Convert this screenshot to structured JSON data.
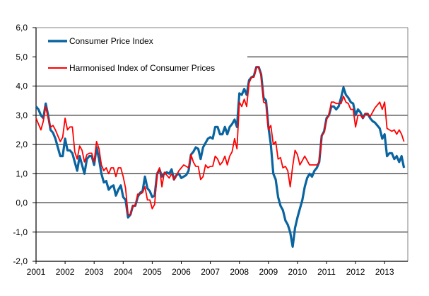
{
  "chart_data": {
    "type": "line",
    "title": "",
    "xlabel": "",
    "ylabel": "",
    "x_start": "2001-01",
    "x_frequency": "monthly",
    "x_tick_labels": [
      "2001",
      "2002",
      "2003",
      "2004",
      "2005",
      "2006",
      "2007",
      "2008",
      "2009",
      "2010",
      "2011",
      "2012",
      "2013"
    ],
    "y_tick_labels": [
      "6,0",
      "5,0",
      "4,0",
      "3,0",
      "2,0",
      "1,0",
      "0,0",
      "-1,0",
      "-2,0"
    ],
    "ylim": [
      -2,
      6
    ],
    "grid": true,
    "legend_placement": "top-left",
    "series": [
      {
        "name": "Consumer Price Index",
        "color": "#0a64a0",
        "values": [
          3.3,
          3.2,
          3.0,
          2.9,
          3.4,
          3.0,
          2.5,
          2.4,
          2.2,
          1.9,
          1.6,
          1.6,
          2.2,
          1.8,
          1.8,
          1.7,
          1.4,
          1.1,
          1.6,
          1.3,
          1.0,
          1.5,
          1.6,
          1.6,
          1.3,
          1.9,
          1.5,
          1.0,
          0.7,
          0.75,
          0.45,
          0.55,
          0.6,
          0.25,
          0.45,
          0.6,
          0.2,
          0.1,
          -0.5,
          -0.4,
          -0.1,
          -0.1,
          0.2,
          0.35,
          0.4,
          0.9,
          0.5,
          0.4,
          0.2,
          0.25,
          1.0,
          1.15,
          0.9,
          1.0,
          1.05,
          1.0,
          1.15,
          0.8,
          0.95,
          1.0,
          0.85,
          0.9,
          0.95,
          1.1,
          1.65,
          1.75,
          1.9,
          1.85,
          1.5,
          1.9,
          2.05,
          2.2,
          2.25,
          2.2,
          2.6,
          2.6,
          2.35,
          2.35,
          2.6,
          2.35,
          2.6,
          2.7,
          2.85,
          2.6,
          3.75,
          3.7,
          3.9,
          3.7,
          4.2,
          4.3,
          4.35,
          4.65,
          4.65,
          4.4,
          3.6,
          3.5,
          2.6,
          2.0,
          1.0,
          0.8,
          0.2,
          -0.1,
          -0.25,
          -0.6,
          -0.75,
          -1.0,
          -1.5,
          -0.85,
          -0.5,
          -0.2,
          0.1,
          0.55,
          0.85,
          1.0,
          0.9,
          1.1,
          1.2,
          1.4,
          2.3,
          2.45,
          2.9,
          3.0,
          3.3,
          3.3,
          3.2,
          3.3,
          3.6,
          3.95,
          3.7,
          3.6,
          3.45,
          3.4,
          3.0,
          3.2,
          3.1,
          2.9,
          3.05,
          3.05,
          2.9,
          2.8,
          2.75,
          2.65,
          2.55,
          2.2,
          2.35,
          1.6,
          1.7,
          1.7,
          1.5,
          1.6,
          1.4,
          1.6,
          1.2
        ]
      },
      {
        "name": "Harmonised Index of Consumer Prices",
        "color": "#ff0000",
        "values": [
          2.9,
          2.7,
          2.5,
          2.8,
          3.3,
          2.9,
          2.6,
          2.65,
          2.5,
          2.3,
          2.1,
          2.25,
          2.9,
          2.5,
          2.6,
          2.6,
          1.75,
          1.5,
          1.95,
          1.8,
          1.4,
          1.65,
          1.7,
          1.7,
          1.4,
          2.1,
          1.85,
          1.3,
          1.1,
          1.2,
          1.0,
          1.2,
          1.2,
          0.9,
          1.2,
          1.2,
          0.9,
          0.5,
          -0.4,
          -0.4,
          -0.1,
          -0.1,
          0.3,
          0.3,
          0.35,
          0.55,
          0.1,
          0.1,
          -0.2,
          -0.05,
          1.0,
          1.2,
          0.55,
          1.05,
          0.95,
          0.85,
          1.0,
          0.8,
          0.95,
          1.1,
          1.2,
          1.3,
          1.25,
          1.2,
          1.65,
          1.4,
          1.25,
          1.25,
          0.8,
          0.9,
          1.3,
          1.2,
          1.25,
          1.25,
          1.6,
          1.5,
          1.3,
          1.4,
          1.6,
          1.3,
          1.6,
          1.75,
          2.2,
          1.85,
          3.45,
          3.3,
          3.55,
          3.3,
          4.1,
          4.3,
          4.3,
          4.65,
          4.65,
          4.35,
          3.45,
          3.4,
          2.5,
          2.65,
          2.0,
          2.1,
          1.5,
          1.55,
          1.2,
          1.25,
          1.1,
          0.55,
          1.25,
          1.8,
          1.65,
          1.3,
          1.45,
          1.6,
          1.45,
          1.3,
          1.3,
          1.3,
          1.3,
          1.4,
          2.3,
          2.4,
          2.85,
          3.0,
          3.45,
          3.45,
          3.4,
          3.4,
          3.4,
          3.65,
          3.45,
          3.4,
          3.2,
          3.2,
          2.6,
          3.0,
          3.0,
          2.9,
          3.05,
          3.05,
          2.95,
          3.1,
          3.25,
          3.35,
          3.45,
          3.2,
          3.45,
          2.55,
          2.5,
          2.45,
          2.5,
          2.35,
          2.5,
          2.35,
          2.1
        ]
      }
    ]
  }
}
